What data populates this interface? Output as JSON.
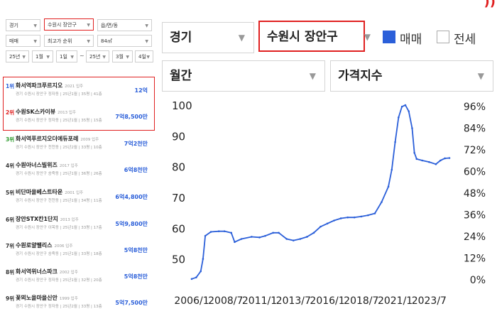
{
  "filters": {
    "region": "경기",
    "city": "수원시 장안구",
    "dong": "읍/면/동",
    "trade_type": "매매",
    "sort": "최고가 순위",
    "area": "84㎡",
    "from_year": "25년",
    "from_month": "1월",
    "from_day": "1일",
    "to_year": "25년",
    "to_month": "3월",
    "to_day": "4일",
    "range_sep": "~"
  },
  "ranking": [
    {
      "rank": "1위",
      "name": "화서역파크푸르지오",
      "year": "2021 입주",
      "sub": "경기 수원시 장안구 정자동 | 25년1월 | 35평 | 41층",
      "price": "12억"
    },
    {
      "rank": "2위",
      "name": "수원SK스카이뷰",
      "year": "2013 입주",
      "sub": "경기 수원시 장안구 정자동 | 25년1월 | 35평 | 15층",
      "price": "7억8,500만"
    },
    {
      "rank": "3위",
      "name": "화서역푸르지오더에듀포레",
      "year": "2009 입주",
      "sub": "경기 수원시 장안구 천천동 | 25년2월 | 33평 | 10층",
      "price": "7억2천만"
    },
    {
      "rank": "4위",
      "name": "수원아너스빌위즈",
      "year": "2017 입주",
      "sub": "경기 수원시 장안구 송죽동 | 25년1월 | 36평 | 26층",
      "price": "6억8천만"
    },
    {
      "rank": "5위",
      "name": "비단마을베스트타운",
      "year": "2001 입주",
      "sub": "경기 수원시 장안구 천천동 | 25년1월 | 34평 | 11층",
      "price": "6억4,800만"
    },
    {
      "rank": "6위",
      "name": "장안STX칸1단지",
      "year": "2013 입주",
      "sub": "경기 수원시 장안구 이목동 | 25년1월 | 33평 | 17층",
      "price": "5억9,800만"
    },
    {
      "rank": "7위",
      "name": "수원로얄팰리스",
      "year": "2006 입주",
      "sub": "경기 수원시 장안구 송죽동 | 25년1월 | 33평 | 18층",
      "price": "5억8천만"
    },
    {
      "rank": "8위",
      "name": "화서역위너스파크",
      "year": "2002 입주",
      "sub": "경기 수원시 장안구 정자동 | 25년1월 | 32평 | 20층",
      "price": "5억8천만"
    },
    {
      "rank": "9위",
      "name": "꽃뫼노을마을신안",
      "year": "1999 입주",
      "sub": "경기 수원시 장안구 정자동 | 25년2월 | 33평 | 13층",
      "price": "5억7,500만"
    }
  ],
  "controls": {
    "region": "경기",
    "city": "수원시 장안구",
    "trade_label": "매매",
    "rent_label": "전세",
    "trade_checked": true,
    "rent_checked": false,
    "period": "월간",
    "index_type": "가격지수",
    "corner_mark": "))"
  },
  "colors": {
    "accent": "#2b5fd9",
    "highlight": "#e02020",
    "line": "#2b5fd9"
  },
  "chart_data": {
    "type": "line",
    "x_ticks": [
      "2006/1",
      "2008/7",
      "2011/1",
      "2013/7",
      "2016/1",
      "2018/7",
      "2021/1",
      "2023/7"
    ],
    "y_left_ticks": [
      "100",
      "90",
      "80",
      "70",
      "60",
      "50"
    ],
    "y_right_ticks": [
      "96%",
      "84%",
      "72%",
      "60%",
      "48%",
      "36%",
      "24%",
      "12%",
      "0%"
    ],
    "ylim": [
      43,
      100
    ],
    "series": [
      {
        "points": [
          [
            "2006/1",
            43.5
          ],
          [
            "2006/5",
            44.0
          ],
          [
            "2006/9",
            46.0
          ],
          [
            "2006/11",
            50.0
          ],
          [
            "2007/1",
            57.5
          ],
          [
            "2007/6",
            58.8
          ],
          [
            "2008/1",
            59.0
          ],
          [
            "2008/6",
            59.0
          ],
          [
            "2008/12",
            58.5
          ],
          [
            "2009/3",
            55.5
          ],
          [
            "2009/9",
            56.5
          ],
          [
            "2010/6",
            57.2
          ],
          [
            "2011/1",
            57.0
          ],
          [
            "2011/6",
            57.5
          ],
          [
            "2012/1",
            58.5
          ],
          [
            "2012/6",
            58.5
          ],
          [
            "2013/1",
            56.5
          ],
          [
            "2013/7",
            56.0
          ],
          [
            "2014/1",
            56.5
          ],
          [
            "2014/7",
            57.2
          ],
          [
            "2015/1",
            58.5
          ],
          [
            "2015/7",
            60.5
          ],
          [
            "2016/1",
            61.5
          ],
          [
            "2016/7",
            62.5
          ],
          [
            "2017/1",
            63.2
          ],
          [
            "2017/7",
            63.5
          ],
          [
            "2018/1",
            63.5
          ],
          [
            "2018/7",
            63.8
          ],
          [
            "2019/1",
            64.2
          ],
          [
            "2019/7",
            64.8
          ],
          [
            "2020/1",
            68.5
          ],
          [
            "2020/7",
            73.5
          ],
          [
            "2020/10",
            79.0
          ],
          [
            "2021/1",
            88.0
          ],
          [
            "2021/4",
            96.0
          ],
          [
            "2021/7",
            99.5
          ],
          [
            "2021/10",
            100.0
          ],
          [
            "2022/1",
            98.0
          ],
          [
            "2022/4",
            92.5
          ],
          [
            "2022/6",
            84.5
          ],
          [
            "2022/8",
            82.5
          ],
          [
            "2023/1",
            82.0
          ],
          [
            "2023/7",
            81.5
          ],
          [
            "2024/1",
            80.8
          ],
          [
            "2024/5",
            82.0
          ],
          [
            "2024/9",
            82.7
          ],
          [
            "2025/1",
            82.8
          ]
        ]
      }
    ]
  }
}
